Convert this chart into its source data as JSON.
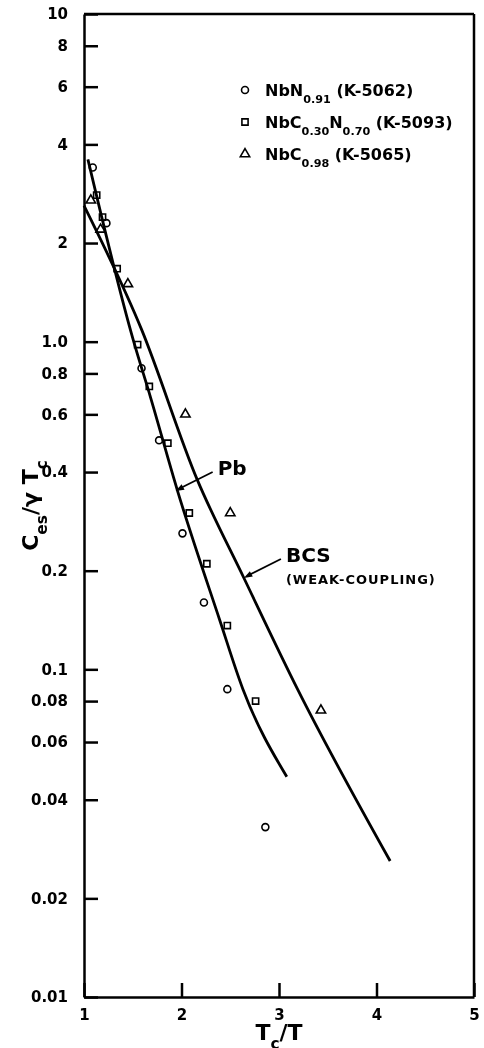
{
  "chart_data": {
    "type": "scatter",
    "xlabel": "T$_{c}$/T",
    "ylabel": "C$_{es}$/γ T$_{c}$",
    "log": "y",
    "xlim": [
      1,
      5
    ],
    "xticks": [
      1,
      2,
      3,
      4,
      5
    ],
    "ylim": [
      0.01,
      10
    ],
    "yticks": [
      0.01,
      0.02,
      0.04,
      0.06,
      0.08,
      0.1,
      0.2,
      0.4,
      0.6,
      0.8,
      {
        "value": 1,
        "label": "1.0"
      },
      2,
      4,
      6,
      8,
      10
    ],
    "legend": "top right",
    "grid": false,
    "series": [
      {
        "name": "NbN$_{0.91}$ (K-5062)",
        "color": "#000000",
        "marker": "circle",
        "x": [
          1.09,
          1.23,
          1.59,
          1.77,
          2.01,
          2.23,
          2.47,
          2.86
        ],
        "values": [
          3.4,
          2.3,
          0.83,
          0.5,
          0.26,
          0.16,
          0.087,
          0.033
        ]
      },
      {
        "name": "NbC$_{0.30}$N$_{0.70}$ (K-5093)",
        "color": "#000000",
        "marker": "square",
        "x": [
          1.13,
          1.19,
          1.34,
          1.55,
          1.67,
          1.86,
          2.08,
          2.26,
          2.47,
          2.76
        ],
        "values": [
          2.8,
          2.4,
          1.67,
          0.98,
          0.73,
          0.49,
          0.3,
          0.21,
          0.136,
          0.08
        ]
      },
      {
        "name": "NbC$_{0.98}$ (K-5065)",
        "color": "#000000",
        "marker": "triangle",
        "x": [
          1.07,
          1.17,
          1.45,
          2.04,
          2.5,
          3.43
        ],
        "values": [
          2.7,
          2.2,
          1.5,
          0.6,
          0.3,
          0.075
        ]
      },
      {
        "type": "line",
        "color": "#000000",
        "marker": "none",
        "x": [
          1.04,
          1.51,
          1.68,
          1.96,
          2.39,
          2.63,
          3.08
        ],
        "values": [
          3.6,
          1.0,
          0.68,
          0.35,
          0.142,
          0.087,
          0.047
        ]
      },
      {
        "type": "line",
        "color": "#000000",
        "marker": "none",
        "x": [
          1.0,
          1.59,
          2.16,
          2.64,
          3.19,
          4.14
        ],
        "values": [
          2.6,
          1.09,
          0.38,
          0.19,
          0.087,
          0.026
        ]
      }
    ],
    "annotations": [
      {
        "text": "Pb",
        "x": 1.94,
        "y": 0.35
      },
      {
        "text": "BCS (WEAK-COUPLING)",
        "x": 2.64,
        "y": 0.19
      }
    ]
  }
}
